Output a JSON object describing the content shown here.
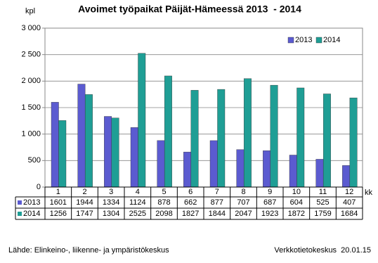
{
  "chart_data": {
    "type": "bar",
    "title": "Avoimet työpaikat Päijät-Hämeessä 2013  - 2014",
    "y_label": "kpl",
    "x_label": "kk",
    "categories": [
      "1",
      "2",
      "3",
      "4",
      "5",
      "6",
      "7",
      "8",
      "9",
      "10",
      "11",
      "12"
    ],
    "series": [
      {
        "name": "2013",
        "color": "#5b5bd0",
        "values": [
          1601,
          1944,
          1334,
          1124,
          878,
          662,
          877,
          707,
          687,
          604,
          525,
          407
        ]
      },
      {
        "name": "2014",
        "color": "#1f9e95",
        "values": [
          1256,
          1747,
          1304,
          2525,
          2098,
          1827,
          1844,
          2047,
          1923,
          1872,
          1759,
          1684
        ]
      }
    ],
    "ylim": [
      0,
      3000
    ],
    "yticks": [
      0,
      500,
      {
        "value": 1000,
        "label": "1 000"
      },
      {
        "value": 1500,
        "label": "1 500"
      },
      {
        "value": 2000,
        "label": "2 000"
      },
      {
        "value": 2500,
        "label": "2 500"
      },
      {
        "value": 3000,
        "label": "3 000"
      }
    ],
    "grid": true,
    "legend": "top-right",
    "source": "Lähde: Elinkeino-, liikenne- ja ympäristökeskus",
    "credit": "Verkkotietokeskus  20.01.15"
  }
}
